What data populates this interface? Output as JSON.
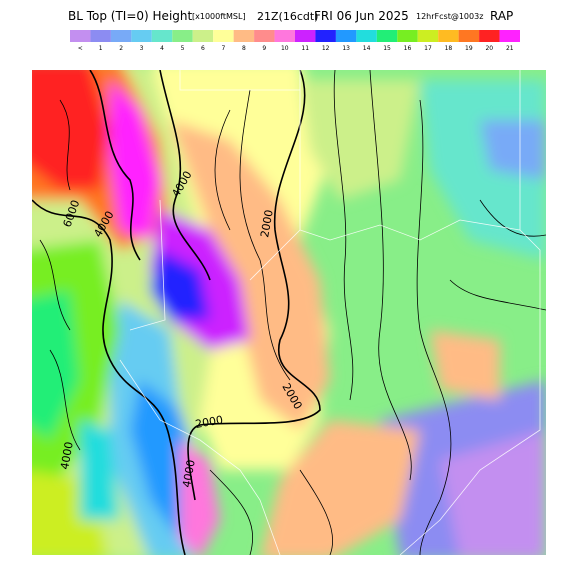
{
  "header": {
    "title": "BL Top (TI=0) Height",
    "units": "[x1000ftMSL]",
    "valid_time": "21Z(16cdt)",
    "date": "FRI 06 Jun 2025",
    "forecast": "12hrFcst@1003z",
    "model": "RAP"
  },
  "legend": {
    "items": [
      {
        "label": "<",
        "color": "#c38ff0"
      },
      {
        "label": "1",
        "color": "#8c8cf2"
      },
      {
        "label": "2",
        "color": "#78aaf7"
      },
      {
        "label": "3",
        "color": "#66ccf2"
      },
      {
        "label": "4",
        "color": "#66e6cc"
      },
      {
        "label": "5",
        "color": "#88ee88"
      },
      {
        "label": "6",
        "color": "#ccf08a"
      },
      {
        "label": "7",
        "color": "#ffff99"
      },
      {
        "label": "8",
        "color": "#ffbb85"
      },
      {
        "label": "9",
        "color": "#ff8c8c"
      },
      {
        "label": "10",
        "color": "#ff77dd"
      },
      {
        "label": "11",
        "color": "#cc22ff"
      },
      {
        "label": "12",
        "color": "#2222ff"
      },
      {
        "label": "13",
        "color": "#2299ff"
      },
      {
        "label": "14",
        "color": "#22dddd"
      },
      {
        "label": "15",
        "color": "#22ee77"
      },
      {
        "label": "16",
        "color": "#77ee22"
      },
      {
        "label": "17",
        "color": "#ccee22"
      },
      {
        "label": "18",
        "color": "#ffbb22"
      },
      {
        "label": "19",
        "color": "#ff7722"
      },
      {
        "label": "20",
        "color": "#ff2222"
      },
      {
        "label": "21",
        "color": "#ff22ff"
      }
    ]
  },
  "contour_labels": [
    "6000",
    "4000",
    "4000",
    "2000",
    "2000",
    "2000",
    "4000",
    "4000"
  ]
}
